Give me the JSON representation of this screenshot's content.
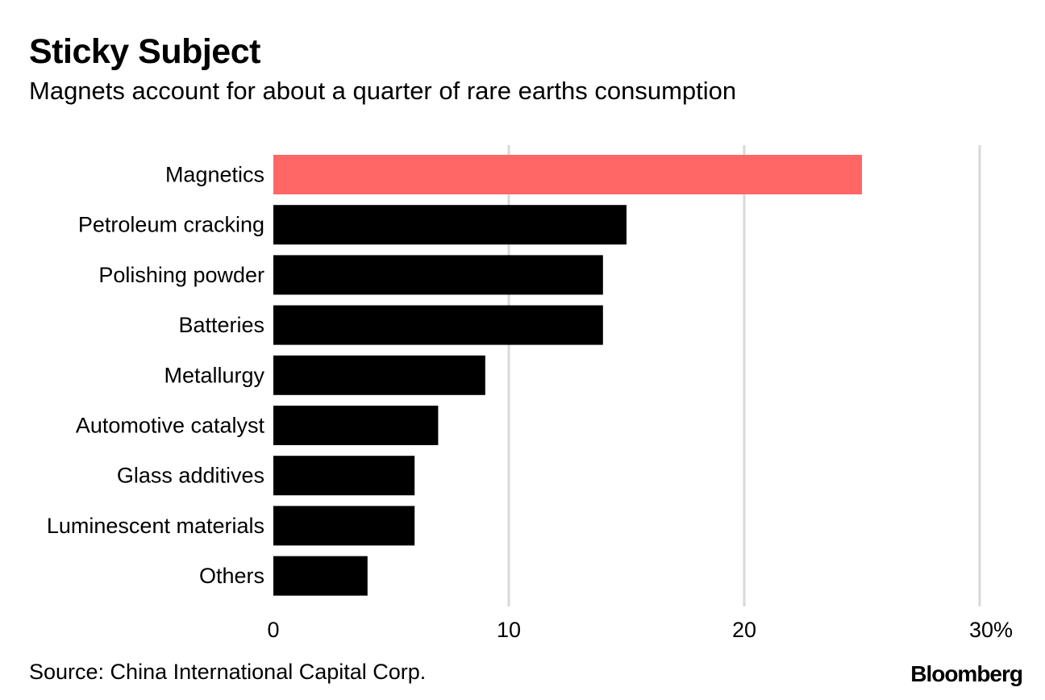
{
  "header": {
    "title": "Sticky Subject",
    "subtitle": "Magnets account for about a quarter of rare earths consumption"
  },
  "footer": {
    "source": "Source: China International Capital Corp.",
    "brand": "Bloomberg"
  },
  "colors": {
    "highlight": "#ff6666",
    "bar": "#000000",
    "grid": "#d9d9d9"
  },
  "chart_data": {
    "type": "bar",
    "orientation": "horizontal",
    "title": "Sticky Subject",
    "subtitle": "Magnets account for about a quarter of rare earths consumption",
    "categories": [
      "Magnetics",
      "Petroleum cracking",
      "Polishing powder",
      "Batteries",
      "Metallurgy",
      "Automotive catalyst",
      "Glass additives",
      "Luminescent materials",
      "Others"
    ],
    "values": [
      25,
      15,
      14,
      14,
      9,
      7,
      6,
      6,
      4
    ],
    "highlight_index": 0,
    "xlim": [
      0,
      30
    ],
    "xticks": [
      0,
      10,
      20,
      30
    ],
    "xtick_labels": [
      "0",
      "10",
      "20",
      "30%"
    ],
    "xlabel": "",
    "ylabel": "",
    "grid": true
  }
}
